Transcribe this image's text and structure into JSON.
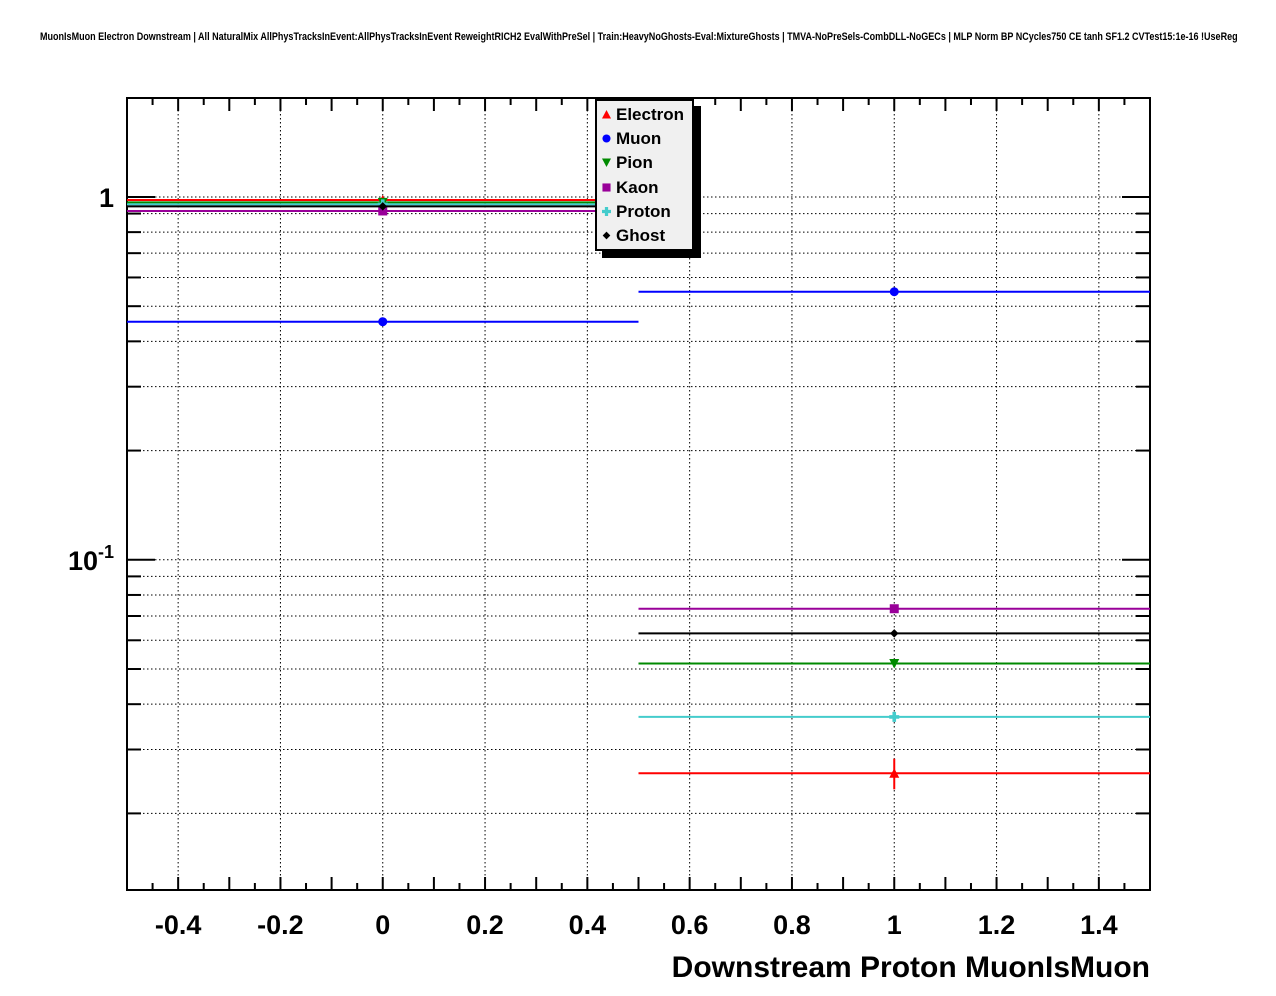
{
  "header": {
    "title": "MuonIsMuon Electron Downstream | All NaturalMix AllPhysTracksInEvent:AllPhysTracksInEvent ReweightRICH2 EvalWithPreSel | Train:HeavyNoGhosts-Eval:MixtureGhosts | TMVA-NoPreSels-CombDLL-NoGECs | MLP Norm BP NCycles750 CE tanh SF1.2 CVTest15:1e-16 !UseReg"
  },
  "chart_data": {
    "type": "scatter",
    "title": "",
    "xlabel": "Downstream Proton MuonIsMuon",
    "ylabel": "",
    "yscale": "log",
    "xlim": [
      -0.5,
      1.5
    ],
    "ylim": [
      0.0123,
      1.874
    ],
    "grid": "dotted",
    "x": [
      0,
      1
    ],
    "xerr": 0.5,
    "series": [
      {
        "name": "Electron",
        "color": "#ff0000",
        "marker": "triangle-up",
        "values": [
          0.981,
          0.0258
        ],
        "yerr": [
          0.003,
          0.0025
        ]
      },
      {
        "name": "Muon",
        "color": "#0000ff",
        "marker": "circle",
        "values": [
          0.453,
          0.548
        ],
        "yerr": [
          0.002,
          0.002
        ]
      },
      {
        "name": "Pion",
        "color": "#008a00",
        "marker": "triangle-down",
        "values": [
          0.966,
          0.0518
        ],
        "yerr": [
          0.002,
          0.0012
        ]
      },
      {
        "name": "Kaon",
        "color": "#990099",
        "marker": "square",
        "values": [
          0.915,
          0.0733
        ],
        "yerr": [
          0.002,
          0.0012
        ]
      },
      {
        "name": "Proton",
        "color": "#44cccc",
        "marker": "cross",
        "values": [
          0.954,
          0.0369
        ],
        "yerr": [
          0.002,
          0.001
        ]
      },
      {
        "name": "Ghost",
        "color": "#000000",
        "marker": "diamond",
        "values": [
          0.942,
          0.0627
        ],
        "yerr": [
          0.0015,
          0.0008
        ]
      }
    ],
    "xticks_labeled": [
      -0.4,
      -0.2,
      0,
      0.2,
      0.4,
      0.6,
      0.8,
      1,
      1.2,
      1.4
    ],
    "xtick_labels": [
      "-0.4",
      "-0.2",
      "0",
      "0.2",
      "0.4",
      "0.6",
      "0.8",
      "1",
      "1.2",
      "1.4"
    ],
    "xtick_minor_step": 0.05,
    "ytick_labels": [
      {
        "value": 1,
        "base": "1",
        "exp": ""
      },
      {
        "value": 0.1,
        "base": "10",
        "exp": "-1"
      }
    ],
    "legend_position": "top-right",
    "legend_entries": [
      "Electron",
      "Muon",
      "Pion",
      "Kaon",
      "Proton",
      "Ghost"
    ]
  }
}
